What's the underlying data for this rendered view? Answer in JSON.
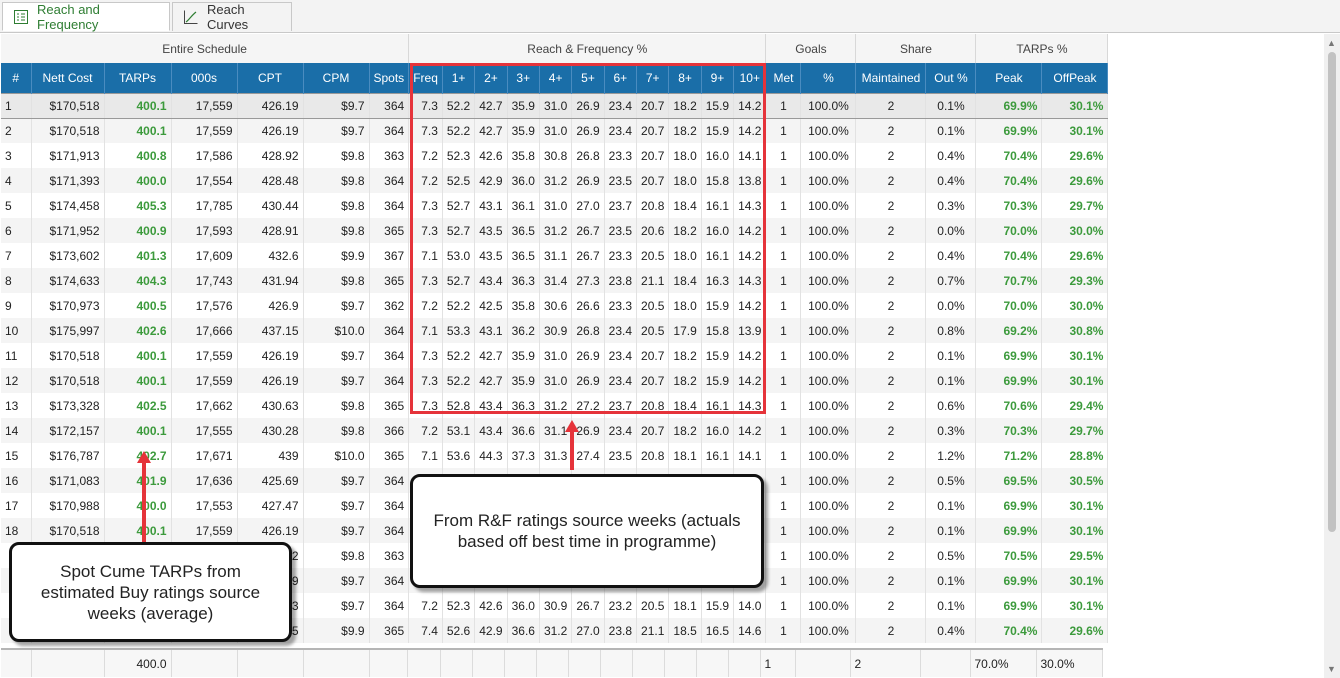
{
  "tabs": [
    {
      "label": "Reach and Frequency",
      "icon": "grid-chart-icon",
      "active": true
    },
    {
      "label": "Reach Curves",
      "icon": "line-chart-icon",
      "active": false
    }
  ],
  "groups": [
    "Entire Schedule",
    "Reach & Frequency %",
    "Goals",
    "Share",
    "TARPs %"
  ],
  "columns": [
    "#",
    "Nett Cost",
    "TARPs",
    "000s",
    "CPT",
    "CPM",
    "Spots",
    "Freq",
    "1+",
    "2+",
    "3+",
    "4+",
    "5+",
    "6+",
    "7+",
    "8+",
    "9+",
    "10+",
    "Met",
    "%",
    "Maintained",
    "Out %",
    "Peak",
    "OffPeak"
  ],
  "rows": [
    [
      "1",
      "$170,518",
      "400.1",
      "17,559",
      "426.19",
      "$9.7",
      "364",
      "7.3",
      "52.2",
      "42.7",
      "35.9",
      "31.0",
      "26.9",
      "23.4",
      "20.7",
      "18.2",
      "15.9",
      "14.2",
      "1",
      "100.0%",
      "2",
      "0.1%",
      "69.9%",
      "30.1%"
    ],
    [
      "2",
      "$170,518",
      "400.1",
      "17,559",
      "426.19",
      "$9.7",
      "364",
      "7.3",
      "52.2",
      "42.7",
      "35.9",
      "31.0",
      "26.9",
      "23.4",
      "20.7",
      "18.2",
      "15.9",
      "14.2",
      "1",
      "100.0%",
      "2",
      "0.1%",
      "69.9%",
      "30.1%"
    ],
    [
      "3",
      "$171,913",
      "400.8",
      "17,586",
      "428.92",
      "$9.8",
      "363",
      "7.2",
      "52.3",
      "42.6",
      "35.8",
      "30.8",
      "26.8",
      "23.3",
      "20.7",
      "18.0",
      "16.0",
      "14.1",
      "1",
      "100.0%",
      "2",
      "0.4%",
      "70.4%",
      "29.6%"
    ],
    [
      "4",
      "$171,393",
      "400.0",
      "17,554",
      "428.48",
      "$9.8",
      "364",
      "7.2",
      "52.5",
      "42.9",
      "36.0",
      "31.2",
      "26.9",
      "23.5",
      "20.7",
      "18.0",
      "15.8",
      "13.8",
      "1",
      "100.0%",
      "2",
      "0.4%",
      "70.4%",
      "29.6%"
    ],
    [
      "5",
      "$174,458",
      "405.3",
      "17,785",
      "430.44",
      "$9.8",
      "364",
      "7.3",
      "52.7",
      "43.1",
      "36.1",
      "31.0",
      "27.0",
      "23.7",
      "20.8",
      "18.4",
      "16.1",
      "14.3",
      "1",
      "100.0%",
      "2",
      "0.3%",
      "70.3%",
      "29.7%"
    ],
    [
      "6",
      "$171,952",
      "400.9",
      "17,593",
      "428.91",
      "$9.8",
      "365",
      "7.3",
      "52.7",
      "43.5",
      "36.5",
      "31.2",
      "26.7",
      "23.5",
      "20.6",
      "18.2",
      "16.0",
      "14.2",
      "1",
      "100.0%",
      "2",
      "0.0%",
      "70.0%",
      "30.0%"
    ],
    [
      "7",
      "$173,602",
      "401.3",
      "17,609",
      "432.6",
      "$9.9",
      "367",
      "7.1",
      "53.0",
      "43.5",
      "36.5",
      "31.1",
      "26.7",
      "23.3",
      "20.5",
      "18.0",
      "16.1",
      "14.2",
      "1",
      "100.0%",
      "2",
      "0.4%",
      "70.4%",
      "29.6%"
    ],
    [
      "8",
      "$174,633",
      "404.3",
      "17,743",
      "431.94",
      "$9.8",
      "365",
      "7.3",
      "52.7",
      "43.4",
      "36.3",
      "31.4",
      "27.3",
      "23.8",
      "21.1",
      "18.4",
      "16.3",
      "14.3",
      "1",
      "100.0%",
      "2",
      "0.7%",
      "70.7%",
      "29.3%"
    ],
    [
      "9",
      "$170,973",
      "400.5",
      "17,576",
      "426.9",
      "$9.7",
      "362",
      "7.2",
      "52.2",
      "42.5",
      "35.8",
      "30.6",
      "26.6",
      "23.3",
      "20.5",
      "18.0",
      "15.9",
      "14.2",
      "1",
      "100.0%",
      "2",
      "0.0%",
      "70.0%",
      "30.0%"
    ],
    [
      "10",
      "$175,997",
      "402.6",
      "17,666",
      "437.15",
      "$10.0",
      "364",
      "7.1",
      "53.3",
      "43.1",
      "36.2",
      "30.9",
      "26.8",
      "23.4",
      "20.5",
      "17.9",
      "15.8",
      "13.9",
      "1",
      "100.0%",
      "2",
      "0.8%",
      "69.2%",
      "30.8%"
    ],
    [
      "11",
      "$170,518",
      "400.1",
      "17,559",
      "426.19",
      "$9.7",
      "364",
      "7.3",
      "52.2",
      "42.7",
      "35.9",
      "31.0",
      "26.9",
      "23.4",
      "20.7",
      "18.2",
      "15.9",
      "14.2",
      "1",
      "100.0%",
      "2",
      "0.1%",
      "69.9%",
      "30.1%"
    ],
    [
      "12",
      "$170,518",
      "400.1",
      "17,559",
      "426.19",
      "$9.7",
      "364",
      "7.3",
      "52.2",
      "42.7",
      "35.9",
      "31.0",
      "26.9",
      "23.4",
      "20.7",
      "18.2",
      "15.9",
      "14.2",
      "1",
      "100.0%",
      "2",
      "0.1%",
      "69.9%",
      "30.1%"
    ],
    [
      "13",
      "$173,328",
      "402.5",
      "17,662",
      "430.63",
      "$9.8",
      "365",
      "7.3",
      "52.8",
      "43.4",
      "36.3",
      "31.2",
      "27.2",
      "23.7",
      "20.8",
      "18.4",
      "16.1",
      "14.3",
      "1",
      "100.0%",
      "2",
      "0.6%",
      "70.6%",
      "29.4%"
    ],
    [
      "14",
      "$172,157",
      "400.1",
      "17,555",
      "430.28",
      "$9.8",
      "366",
      "7.2",
      "53.1",
      "43.4",
      "36.6",
      "31.1",
      "26.9",
      "23.4",
      "20.7",
      "18.2",
      "16.0",
      "14.2",
      "1",
      "100.0%",
      "2",
      "0.3%",
      "70.3%",
      "29.7%"
    ],
    [
      "15",
      "$176,787",
      "402.7",
      "17,671",
      "439",
      "$10.0",
      "365",
      "7.1",
      "53.6",
      "44.3",
      "37.3",
      "31.3",
      "27.4",
      "23.5",
      "20.8",
      "18.1",
      "16.1",
      "14.1",
      "1",
      "100.0%",
      "2",
      "1.2%",
      "71.2%",
      "28.8%"
    ],
    [
      "16",
      "$171,083",
      "401.9",
      "17,636",
      "425.69",
      "$9.7",
      "364",
      "",
      "",
      "",
      "",
      "",
      "",
      "",
      "",
      "",
      "",
      "",
      "1",
      "100.0%",
      "2",
      "0.5%",
      "69.5%",
      "30.5%"
    ],
    [
      "17",
      "$170,988",
      "400.0",
      "17,553",
      "427.47",
      "$9.7",
      "364",
      "",
      "",
      "",
      "",
      "",
      "",
      "",
      "",
      "",
      "",
      "",
      "1",
      "100.0%",
      "2",
      "0.1%",
      "69.9%",
      "30.1%"
    ],
    [
      "18",
      "$170,518",
      "400.1",
      "17,559",
      "426.19",
      "$9.7",
      "364",
      "",
      "",
      "",
      "",
      "",
      "",
      "",
      "",
      "",
      "",
      "",
      "1",
      "100.0%",
      "2",
      "0.1%",
      "69.9%",
      "30.1%"
    ],
    [
      "",
      "",
      "",
      "",
      "2",
      "$9.8",
      "363",
      "",
      "",
      "",
      "",
      "",
      "",
      "",
      "",
      "",
      "",
      "",
      "1",
      "100.0%",
      "2",
      "0.5%",
      "70.5%",
      "29.5%"
    ],
    [
      "",
      "",
      "",
      "",
      "9",
      "$9.7",
      "364",
      "",
      "",
      "",
      "",
      "",
      "",
      "",
      "",
      "",
      "",
      "",
      "1",
      "100.0%",
      "2",
      "0.1%",
      "69.9%",
      "30.1%"
    ],
    [
      "",
      "",
      "",
      "",
      "3",
      "$9.7",
      "364",
      "7.2",
      "52.3",
      "42.6",
      "36.0",
      "30.9",
      "26.7",
      "23.2",
      "20.5",
      "18.1",
      "15.9",
      "14.0",
      "1",
      "100.0%",
      "2",
      "0.1%",
      "69.9%",
      "30.1%"
    ],
    [
      "",
      "",
      "",
      "",
      "5",
      "$9.9",
      "365",
      "7.4",
      "52.6",
      "42.9",
      "36.6",
      "31.2",
      "27.0",
      "23.8",
      "21.1",
      "18.5",
      "16.5",
      "14.6",
      "1",
      "100.0%",
      "2",
      "0.4%",
      "70.4%",
      "29.6%"
    ]
  ],
  "footer": [
    "",
    "",
    "400.0",
    "",
    "",
    "",
    "",
    "",
    "",
    "",
    "",
    "",
    "",
    "",
    "",
    "",
    "",
    "",
    "1",
    "",
    "2",
    "",
    "70.0%",
    "30.0%"
  ],
  "callouts": {
    "rf": "From R&F ratings source weeks (actuals based off best time in programme)",
    "tarps": "Spot Cume TARPs from estimated Buy ratings source weeks (average)"
  },
  "colors": {
    "header": "#1a6ea8",
    "green": "#3c9a3c",
    "highlight": "#e5333a"
  }
}
